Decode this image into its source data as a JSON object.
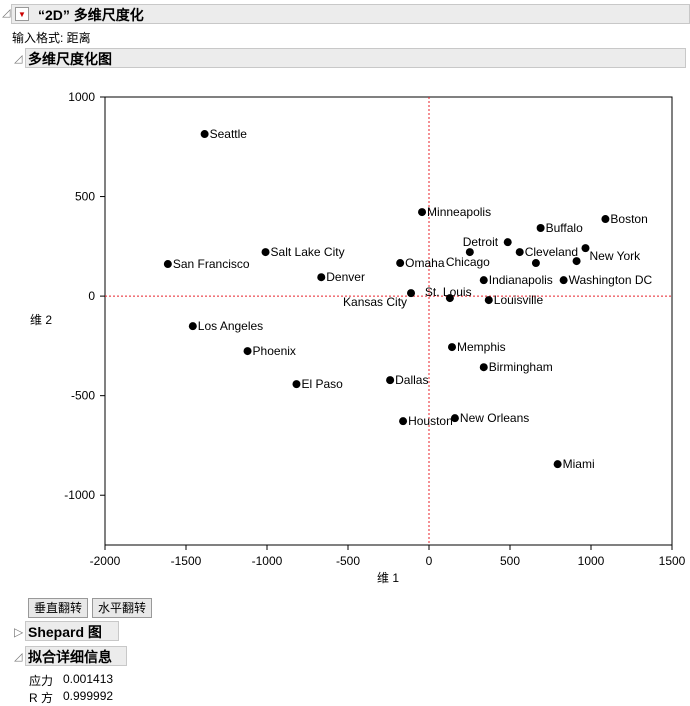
{
  "report": {
    "title": "“2D” 多维尺度化",
    "input_format": "输入格式: 距离",
    "plot_title": "多维尺度化图"
  },
  "buttons": {
    "vflip": "垂直翻转",
    "hflip": "水平翻转"
  },
  "shepard": {
    "title": "Shepard 图"
  },
  "fit": {
    "title": "拟合详细信息",
    "rows": [
      {
        "label": "应力",
        "value": "0.001413"
      },
      {
        "label": "R 方",
        "value": "0.999992"
      }
    ]
  },
  "colors": {
    "refline": "#e8202a",
    "point": "#000000",
    "header": "#ececec",
    "menu_arrow": "#cc0000"
  },
  "chart_data": {
    "type": "scatter",
    "xlabel": "维 1",
    "ylabel": "维 2",
    "xlim": [
      -2000,
      1500
    ],
    "ylim": [
      -1250,
      1000
    ],
    "xticks": [
      -2000,
      -1500,
      -1000,
      -500,
      0,
      500,
      1000,
      1500
    ],
    "yticks": [
      -1000,
      -500,
      0,
      500,
      1000
    ],
    "reference_lines": {
      "x": 0,
      "y": 0
    },
    "points": [
      {
        "label": "Seattle",
        "x": -1385,
        "y": 814
      },
      {
        "label": "San Francisco",
        "x": -1612,
        "y": 161
      },
      {
        "label": "Salt Lake City",
        "x": -1009,
        "y": 221
      },
      {
        "label": "Denver",
        "x": -665,
        "y": 95
      },
      {
        "label": "Los Angeles",
        "x": -1458,
        "y": -151
      },
      {
        "label": "Phoenix",
        "x": -1120,
        "y": -276
      },
      {
        "label": "El Paso",
        "x": -818,
        "y": -442
      },
      {
        "label": "Dallas",
        "x": -240,
        "y": -422
      },
      {
        "label": "Houston",
        "x": -160,
        "y": -628
      },
      {
        "label": "Kansas City",
        "x": -111,
        "y": 15
      },
      {
        "label": "Omaha",
        "x": -178,
        "y": 166
      },
      {
        "label": "Minneapolis",
        "x": -43,
        "y": 422
      },
      {
        "label": "Chicago",
        "x": 252,
        "y": 221
      },
      {
        "label": "St. Louis",
        "x": 129,
        "y": -10
      },
      {
        "label": "Detroit",
        "x": 486,
        "y": 271
      },
      {
        "label": "Cleveland",
        "x": 560,
        "y": 221
      },
      {
        "label": "",
        "x": 660,
        "y": 166
      },
      {
        "label": "Buffalo",
        "x": 689,
        "y": 342
      },
      {
        "label": "Boston",
        "x": 1089,
        "y": 387
      },
      {
        "label": "New York",
        "x": 966,
        "y": 241
      },
      {
        "label": "",
        "x": 911,
        "y": 176
      },
      {
        "label": "Washington DC",
        "x": 831,
        "y": 80
      },
      {
        "label": "Indianapolis",
        "x": 338,
        "y": 80
      },
      {
        "label": "Louisville",
        "x": 369,
        "y": -20
      },
      {
        "label": "Memphis",
        "x": 142,
        "y": -256
      },
      {
        "label": "Birmingham",
        "x": 338,
        "y": -357
      },
      {
        "label": "New Orleans",
        "x": 160,
        "y": -613
      },
      {
        "label": "Miami",
        "x": 794,
        "y": -844
      }
    ]
  }
}
